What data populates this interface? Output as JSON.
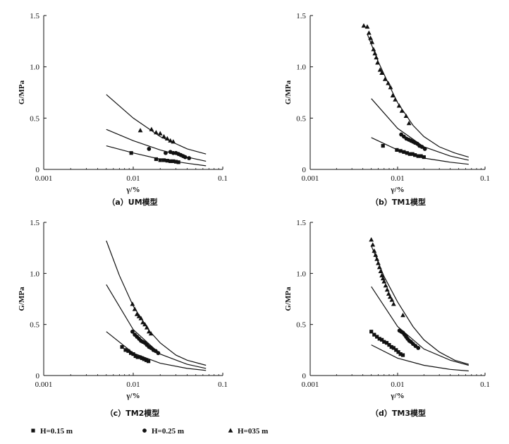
{
  "legend": [
    {
      "label": "H=0.15 m",
      "marker": "square"
    },
    {
      "label": "H=0.25 m",
      "marker": "circle"
    },
    {
      "label": "H=035 m",
      "marker": "triangle"
    }
  ],
  "chart_data": [
    {
      "type": "scatter",
      "title": "（a）UM模型",
      "xlabel": "γ/%",
      "ylabel": "G/MPa",
      "xscale": "log",
      "xlim": [
        0.001,
        0.1
      ],
      "ylim": [
        0,
        1.5
      ],
      "xticks": [
        "0.001",
        "0.01",
        "0.1"
      ],
      "yticks": [
        "0",
        "0.5",
        "1.0",
        "1.5"
      ],
      "series": [
        {
          "name": "H=0.15 m",
          "marker": "square",
          "x": [
            0.0095,
            0.018,
            0.02,
            0.022,
            0.024,
            0.026,
            0.028,
            0.03,
            0.032
          ],
          "y": [
            0.16,
            0.1,
            0.09,
            0.09,
            0.085,
            0.08,
            0.08,
            0.075,
            0.07
          ],
          "fit": {
            "x": [
              0.005,
              0.01,
              0.02,
              0.04,
              0.065
            ],
            "y": [
              0.23,
              0.16,
              0.1,
              0.06,
              0.035
            ]
          }
        },
        {
          "name": "H=0.25 m",
          "marker": "circle",
          "x": [
            0.015,
            0.023,
            0.026,
            0.028,
            0.03,
            0.032,
            0.034,
            0.036,
            0.038,
            0.042
          ],
          "y": [
            0.2,
            0.16,
            0.17,
            0.16,
            0.16,
            0.15,
            0.14,
            0.13,
            0.12,
            0.11
          ],
          "fit": {
            "x": [
              0.005,
              0.01,
              0.02,
              0.04,
              0.065
            ],
            "y": [
              0.39,
              0.28,
              0.19,
              0.12,
              0.08
            ]
          }
        },
        {
          "name": "H=035 m",
          "marker": "triangle",
          "x": [
            0.012,
            0.016,
            0.018,
            0.02,
            0.022,
            0.024,
            0.026,
            0.028
          ],
          "y": [
            0.38,
            0.39,
            0.36,
            0.35,
            0.32,
            0.3,
            0.28,
            0.27
          ],
          "fit": {
            "x": [
              0.005,
              0.01,
              0.02,
              0.04,
              0.065
            ],
            "y": [
              0.73,
              0.5,
              0.32,
              0.2,
              0.15
            ]
          }
        }
      ]
    },
    {
      "type": "scatter",
      "title": "（b）TM1模型",
      "xlabel": "γ/%",
      "ylabel": "G/MPa",
      "xscale": "log",
      "xlim": [
        0.001,
        0.1
      ],
      "ylim": [
        0,
        1.5
      ],
      "xticks": [
        "0.001",
        "0.01",
        "0.1"
      ],
      "yticks": [
        "0",
        "0.5",
        "1.0",
        "1.5"
      ],
      "series": [
        {
          "name": "H=0.15 m",
          "marker": "square",
          "x": [
            0.0068,
            0.0098,
            0.0108,
            0.0118,
            0.0128,
            0.0138,
            0.0148,
            0.0158,
            0.0172,
            0.0185,
            0.02
          ],
          "y": [
            0.23,
            0.19,
            0.18,
            0.17,
            0.16,
            0.15,
            0.15,
            0.14,
            0.13,
            0.13,
            0.12
          ],
          "fit": {
            "x": [
              0.005,
              0.01,
              0.02,
              0.04,
              0.065
            ],
            "y": [
              0.31,
              0.19,
              0.11,
              0.07,
              0.05
            ]
          }
        },
        {
          "name": "H=0.25 m",
          "marker": "circle",
          "x": [
            0.011,
            0.0118,
            0.0126,
            0.0134,
            0.0142,
            0.015,
            0.0158,
            0.0168,
            0.0178,
            0.019,
            0.0205
          ],
          "y": [
            0.34,
            0.32,
            0.3,
            0.29,
            0.28,
            0.27,
            0.26,
            0.25,
            0.23,
            0.22,
            0.2
          ],
          "fit": {
            "x": [
              0.005,
              0.01,
              0.02,
              0.04,
              0.065
            ],
            "y": [
              0.69,
              0.4,
              0.22,
              0.13,
              0.09
            ]
          }
        },
        {
          "name": "H=035 m",
          "marker": "triangle",
          "x": [
            0.0041,
            0.0045,
            0.0047,
            0.0049,
            0.0051,
            0.0053,
            0.0055,
            0.0057,
            0.0059,
            0.0063,
            0.0066,
            0.0072,
            0.0078,
            0.0083,
            0.0088,
            0.0094,
            0.0104,
            0.0112,
            0.0125,
            0.0135
          ],
          "y": [
            1.4,
            1.39,
            1.33,
            1.28,
            1.24,
            1.17,
            1.13,
            1.09,
            1.04,
            0.97,
            0.94,
            0.88,
            0.84,
            0.8,
            0.72,
            0.68,
            0.62,
            0.57,
            0.52,
            0.45
          ],
          "fit": {
            "x": [
              0.0045,
              0.006,
              0.008,
              0.01,
              0.015,
              0.02,
              0.03,
              0.045,
              0.065
            ],
            "y": [
              1.32,
              1.05,
              0.82,
              0.65,
              0.43,
              0.32,
              0.22,
              0.16,
              0.12
            ]
          }
        }
      ]
    },
    {
      "type": "scatter",
      "title": "（c）TM2模型",
      "xlabel": "γ/%",
      "ylabel": "G/MPa",
      "xscale": "log",
      "xlim": [
        0.001,
        0.1
      ],
      "ylim": [
        0,
        1.5
      ],
      "xticks": [
        "0.001",
        "0.01",
        "0.1"
      ],
      "yticks": [
        "0",
        "0.5",
        "1.0",
        "1.5"
      ],
      "series": [
        {
          "name": "H=0.15 m",
          "marker": "square",
          "x": [
            0.0075,
            0.0082,
            0.0088,
            0.0094,
            0.01,
            0.0106,
            0.0112,
            0.0118,
            0.0125,
            0.0132,
            0.014,
            0.0148
          ],
          "y": [
            0.28,
            0.25,
            0.24,
            0.22,
            0.21,
            0.19,
            0.18,
            0.18,
            0.17,
            0.16,
            0.15,
            0.14
          ],
          "fit": {
            "x": [
              0.005,
              0.01,
              0.02,
              0.04,
              0.065
            ],
            "y": [
              0.43,
              0.22,
              0.12,
              0.07,
              0.05
            ]
          }
        },
        {
          "name": "H=0.25 m",
          "marker": "circle",
          "x": [
            0.0098,
            0.0104,
            0.011,
            0.0116,
            0.0122,
            0.0128,
            0.0135,
            0.0142,
            0.015,
            0.0158,
            0.0168,
            0.0178,
            0.019
          ],
          "y": [
            0.43,
            0.4,
            0.38,
            0.36,
            0.34,
            0.33,
            0.32,
            0.3,
            0.28,
            0.27,
            0.25,
            0.24,
            0.22
          ],
          "fit": {
            "x": [
              0.005,
              0.01,
              0.02,
              0.04,
              0.065
            ],
            "y": [
              0.89,
              0.45,
              0.21,
              0.11,
              0.07
            ]
          }
        },
        {
          "name": "H=035 m",
          "marker": "triangle",
          "x": [
            0.0098,
            0.0104,
            0.011,
            0.0116,
            0.0122,
            0.0128,
            0.0135,
            0.0142,
            0.015,
            0.0158
          ],
          "y": [
            0.7,
            0.65,
            0.6,
            0.58,
            0.56,
            0.52,
            0.5,
            0.47,
            0.43,
            0.41
          ],
          "fit": {
            "x": [
              0.005,
              0.007,
              0.01,
              0.015,
              0.02,
              0.03,
              0.04,
              0.065
            ],
            "y": [
              1.32,
              0.98,
              0.68,
              0.44,
              0.32,
              0.2,
              0.15,
              0.1
            ]
          }
        }
      ]
    },
    {
      "type": "scatter",
      "title": "（d）TM3模型",
      "xlabel": "γ/%",
      "ylabel": "G/MPa",
      "xscale": "log",
      "xlim": [
        0.001,
        0.1
      ],
      "ylim": [
        0,
        1.5
      ],
      "xticks": [
        "0.001",
        "0.01",
        "0.1"
      ],
      "yticks": [
        "0",
        "0.5",
        "1.0",
        "1.5"
      ],
      "series": [
        {
          "name": "H=0.15 m",
          "marker": "square",
          "x": [
            0.005,
            0.0054,
            0.0058,
            0.0062,
            0.0066,
            0.007,
            0.0075,
            0.008,
            0.0085,
            0.009,
            0.0096,
            0.0102,
            0.0108,
            0.0115
          ],
          "y": [
            0.43,
            0.4,
            0.38,
            0.36,
            0.35,
            0.33,
            0.32,
            0.3,
            0.28,
            0.27,
            0.25,
            0.23,
            0.21,
            0.2
          ],
          "fit": {
            "x": [
              0.005,
              0.01,
              0.02,
              0.04,
              0.065
            ],
            "y": [
              0.3,
              0.17,
              0.1,
              0.06,
              0.045
            ]
          }
        },
        {
          "name": "H=0.25 m",
          "marker": "circle",
          "x": [
            0.0105,
            0.011,
            0.0115,
            0.012,
            0.0125,
            0.013,
            0.0136,
            0.0142,
            0.015,
            0.016,
            0.0172
          ],
          "y": [
            0.44,
            0.43,
            0.42,
            0.4,
            0.38,
            0.36,
            0.34,
            0.33,
            0.31,
            0.29,
            0.27
          ],
          "fit": {
            "x": [
              0.005,
              0.01,
              0.02,
              0.04,
              0.065
            ],
            "y": [
              0.87,
              0.48,
              0.26,
              0.15,
              0.1
            ]
          }
        },
        {
          "name": "H=035 m",
          "marker": "triangle",
          "x": [
            0.005,
            0.0052,
            0.0054,
            0.0056,
            0.0058,
            0.006,
            0.0062,
            0.0064,
            0.0066,
            0.0068,
            0.007,
            0.0073,
            0.0076,
            0.0079,
            0.0082,
            0.0086,
            0.009,
            0.0115
          ],
          "y": [
            1.33,
            1.28,
            1.22,
            1.18,
            1.14,
            1.1,
            1.06,
            1.02,
            0.98,
            0.95,
            0.92,
            0.88,
            0.84,
            0.8,
            0.77,
            0.74,
            0.7,
            0.59
          ],
          "fit": {
            "x": [
              0.005,
              0.007,
              0.01,
              0.015,
              0.02,
              0.03,
              0.045,
              0.065
            ],
            "y": [
              1.27,
              0.97,
              0.72,
              0.48,
              0.35,
              0.23,
              0.15,
              0.11
            ]
          }
        }
      ]
    }
  ]
}
